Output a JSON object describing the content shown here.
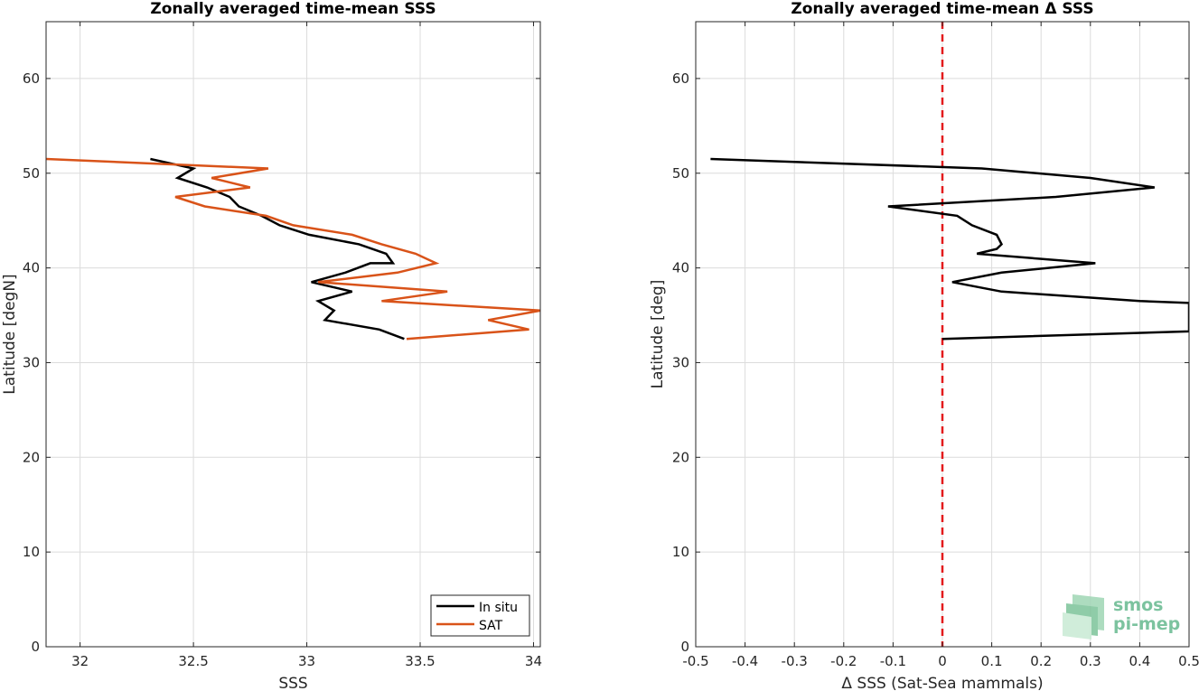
{
  "chart_data": [
    {
      "type": "line",
      "title": "Zonally averaged time-mean SSS",
      "xlabel": "SSS",
      "ylabel": "Latitude [degN]",
      "xlim": [
        31.85,
        34.03
      ],
      "ylim": [
        0,
        66
      ],
      "xticks": [
        32,
        32.5,
        33,
        33.5,
        34
      ],
      "xtick_labels": [
        "32",
        "32.5",
        "33",
        "33.5",
        "34"
      ],
      "yticks": [
        0,
        10,
        20,
        30,
        40,
        50,
        60
      ],
      "ytick_labels": [
        "0",
        "10",
        "20",
        "30",
        "40",
        "50",
        "60"
      ],
      "grid": true,
      "legend": "bottom-right",
      "series": [
        {
          "name": "In situ",
          "color": "#000000",
          "points": [
            [
              32.31,
              51.5
            ],
            [
              32.5,
              50.5
            ],
            [
              32.43,
              49.5
            ],
            [
              32.56,
              48.5
            ],
            [
              32.66,
              47.5
            ],
            [
              32.7,
              46.5
            ],
            [
              32.8,
              45.5
            ],
            [
              32.88,
              44.5
            ],
            [
              33.01,
              43.5
            ],
            [
              33.23,
              42.5
            ],
            [
              33.35,
              41.5
            ],
            [
              33.38,
              40.5
            ],
            [
              33.28,
              40.5
            ],
            [
              33.17,
              39.5
            ],
            [
              33.02,
              38.5
            ],
            [
              33.2,
              37.5
            ],
            [
              33.05,
              36.5
            ],
            [
              33.12,
              35.5
            ],
            [
              33.08,
              34.5
            ],
            [
              33.32,
              33.5
            ],
            [
              33.43,
              32.5
            ]
          ]
        },
        {
          "name": "SAT",
          "color": "#d95319",
          "points": [
            [
              31.85,
              51.5
            ],
            [
              32.83,
              50.5
            ],
            [
              32.58,
              49.5
            ],
            [
              32.75,
              48.5
            ],
            [
              32.42,
              47.5
            ],
            [
              32.55,
              46.5
            ],
            [
              32.82,
              45.5
            ],
            [
              32.94,
              44.5
            ],
            [
              33.2,
              43.5
            ],
            [
              33.33,
              42.5
            ],
            [
              33.48,
              41.5
            ],
            [
              33.57,
              40.5
            ],
            [
              33.4,
              39.5
            ],
            [
              33.05,
              38.5
            ],
            [
              33.62,
              37.5
            ],
            [
              33.33,
              36.5
            ],
            [
              34.03,
              35.5
            ],
            [
              33.8,
              34.5
            ],
            [
              33.98,
              33.5
            ],
            [
              33.44,
              32.5
            ]
          ]
        }
      ]
    },
    {
      "type": "line",
      "title": "Zonally averaged time-mean Δ SSS",
      "xlabel": "Δ SSS (Sat-Sea mammals)",
      "ylabel": "Latitude [deg]",
      "xlim": [
        -0.5,
        0.5
      ],
      "ylim": [
        0,
        66
      ],
      "xticks": [
        -0.5,
        -0.4,
        -0.3,
        -0.2,
        -0.1,
        0,
        0.1,
        0.2,
        0.3,
        0.4,
        0.5
      ],
      "xtick_labels": [
        "-0.5",
        "-0.4",
        "-0.3",
        "-0.2",
        "-0.1",
        "0",
        "0.1",
        "0.2",
        "0.3",
        "0.4",
        "0.5"
      ],
      "yticks": [
        0,
        10,
        20,
        30,
        40,
        50,
        60
      ],
      "ytick_labels": [
        "0",
        "10",
        "20",
        "30",
        "40",
        "50",
        "60"
      ],
      "grid": true,
      "reference_line": {
        "x": 0,
        "color": "#e31a1c",
        "style": "dashed"
      },
      "series": [
        {
          "color": "#000000",
          "points": [
            [
              -0.47,
              51.5
            ],
            [
              0.08,
              50.5
            ],
            [
              0.3,
              49.5
            ],
            [
              0.43,
              48.5
            ],
            [
              0.23,
              47.5
            ],
            [
              -0.11,
              46.5
            ],
            [
              0.03,
              45.5
            ],
            [
              0.06,
              44.5
            ],
            [
              0.11,
              43.5
            ],
            [
              0.12,
              42.5
            ],
            [
              0.11,
              42.0
            ],
            [
              0.07,
              41.5
            ],
            [
              0.31,
              40.5
            ],
            [
              0.12,
              39.5
            ],
            [
              0.02,
              38.5
            ],
            [
              0.12,
              37.5
            ],
            [
              0.4,
              36.5
            ],
            [
              0.5,
              36.3
            ],
            [
              0.5,
              33.3
            ],
            [
              0.0,
              32.5
            ]
          ]
        }
      ]
    }
  ],
  "logo": {
    "line1": "smos",
    "line2": "pi-mep",
    "color": "#66b98f"
  }
}
